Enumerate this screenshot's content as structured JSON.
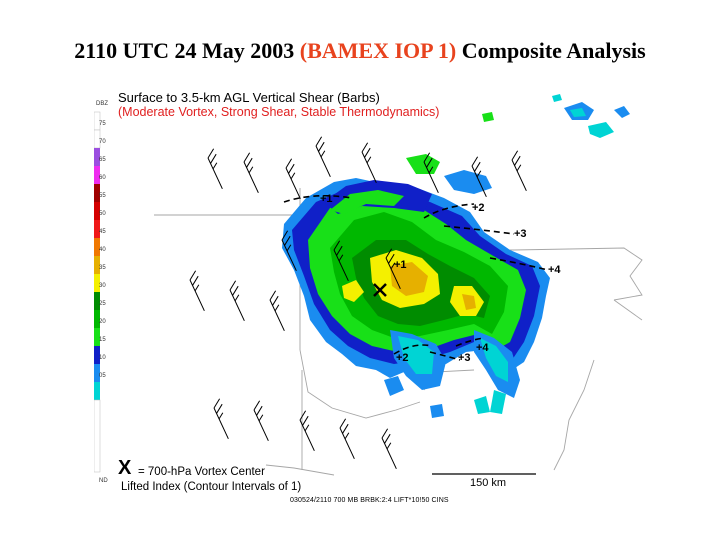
{
  "title": {
    "part1": "2110 UTC 24 May 2003 ",
    "highlight": "(BAMEX IOP 1)",
    "part2": " Composite Analysis"
  },
  "figure": {
    "subtitle": "Surface to 3.5-km AGL Vertical Shear (Barbs)",
    "subtitle_red": "(Moderate Vortex, Strong Shear, Stable Thermodynamics)",
    "legend_x": "= 700-hPa Vortex Center",
    "legend_li": "Lifted Index (Contour Intervals of 1)",
    "scale_label": "150 km",
    "footer": "030524/2110 700 MB  BRBK:2:4 LIFT*10!50 CINS",
    "x_symbol": "X",
    "colorbar": {
      "unit": "DBZ",
      "ticks": [
        "75",
        "70",
        "65",
        "60",
        "55",
        "50",
        "45",
        "40",
        "35",
        "30",
        "25",
        "20",
        "15",
        "10",
        "05",
        "ND"
      ]
    },
    "li_contours": [
      "+1",
      "+2",
      "+3",
      "+4",
      "+1",
      "+2",
      "+3",
      "+4"
    ]
  },
  "colors": {
    "title_highlight": "#e8431e",
    "subtitle_red": "#e02020"
  }
}
